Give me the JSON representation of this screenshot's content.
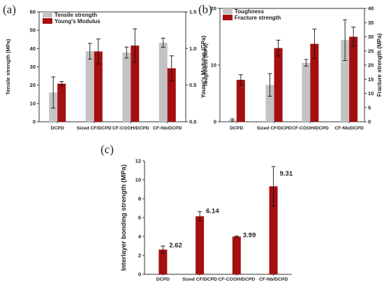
{
  "panels": [
    "(a)",
    "(b)",
    "(c)"
  ],
  "colors": {
    "gray": "#c3c3c3",
    "red": "#a50f0f"
  },
  "chart_data": [
    {
      "id": "a",
      "type": "bar",
      "categories": [
        "DCPD",
        "Sized CF/DCPD",
        "CF-COOH/DCPD",
        "CF-Nb/DCPD"
      ],
      "ylabel": "Tensile strength (MPa)",
      "y2label": "Young's Modulus (GPa)",
      "ylim": [
        0,
        60
      ],
      "yticks": [
        "0",
        "10",
        "20",
        "30",
        "40",
        "50",
        "60"
      ],
      "y2lim": [
        0,
        1.5
      ],
      "y2ticks": [
        "0.0",
        "0.5",
        "1.0",
        "1.5"
      ],
      "legend": "top-left",
      "series": [
        {
          "name": "Tensile strength",
          "axis": "left",
          "color": "#c3c3c3",
          "values": [
            16,
            38.5,
            37.8,
            43.2
          ],
          "errors": [
            8.5,
            4.3,
            3,
            2.5
          ]
        },
        {
          "name": "Young's Modulus",
          "axis": "right",
          "color": "#a50f0f",
          "values": [
            0.52,
            0.96,
            1.04,
            0.73
          ],
          "errors": [
            0.03,
            0.17,
            0.23,
            0.17
          ]
        }
      ]
    },
    {
      "id": "b",
      "type": "bar",
      "categories": [
        "DCPD",
        "Sized CF/DCPD",
        "CF-COOH/DCPD",
        "CF-Nb/DCPD"
      ],
      "ylabel": "Toughness (MPa)",
      "y2label": "Fracture strength (MPa)",
      "ylim": [
        0,
        20
      ],
      "yticks": [
        "0",
        "10",
        "20"
      ],
      "y2lim": [
        0,
        40
      ],
      "y2ticks": [
        "0",
        "5",
        "10",
        "15",
        "20",
        "25",
        "30",
        "35",
        "40"
      ],
      "legend": "top-left",
      "series": [
        {
          "name": "Toughness",
          "axis": "left",
          "color": "#c3c3c3",
          "values": [
            0.3,
            6.5,
            10.4,
            14.4
          ],
          "errors": [
            0.2,
            2,
            0.6,
            3.6
          ]
        },
        {
          "name": "Fracture strength",
          "axis": "right",
          "color": "#a50f0f",
          "values": [
            14.8,
            26,
            27.5,
            30
          ],
          "errors": [
            1.8,
            2.8,
            5.2,
            3.4
          ]
        }
      ]
    },
    {
      "id": "c",
      "type": "bar",
      "categories": [
        "DCPD",
        "Sized CF/DCPD",
        "CF-COOH/DCPD",
        "CF-Nb/DCPD"
      ],
      "ylabel": "Interlayer bonding strength (MPa)",
      "ylim": [
        0,
        12
      ],
      "yticks": [
        "0",
        "2",
        "4",
        "6",
        "8",
        "10",
        "12"
      ],
      "series": [
        {
          "name": "",
          "axis": "left",
          "color": "#a50f0f",
          "values": [
            2.62,
            6.14,
            3.99,
            9.31
          ],
          "errors": [
            0.38,
            0.5,
            0.07,
            2.1
          ],
          "labels": [
            "2.62",
            "6.14",
            "3.99",
            "9.31"
          ]
        }
      ]
    }
  ]
}
